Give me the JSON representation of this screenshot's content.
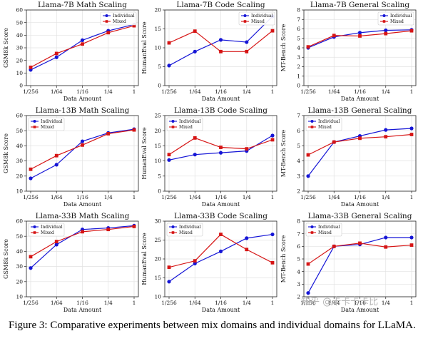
{
  "colors": {
    "individual": "#1515d6",
    "mixed": "#d61515"
  },
  "caption": "Figure 3: Comparative experiments between mix domains and individual domains for LLaMA.",
  "watermark": "知乎 @卡卡卡卡比",
  "chart_data": [
    {
      "type": "line",
      "title": "Llama-7B Math Scaling",
      "xlabel": "Data Amount",
      "ylabel": "GSM8k Score",
      "categories": [
        "1/256",
        "1/64",
        "1/16",
        "1/4",
        "1"
      ],
      "ylim": [
        0,
        60
      ],
      "yticks": [
        0,
        10,
        20,
        30,
        40,
        50,
        60
      ],
      "legend": "top-right",
      "series": [
        {
          "name": "Individual",
          "values": [
            12.5,
            22.5,
            36.0,
            43.5,
            48.5
          ]
        },
        {
          "name": "Mixed",
          "values": [
            14.5,
            25.5,
            33.0,
            42.0,
            47.5
          ]
        }
      ]
    },
    {
      "type": "line",
      "title": "Llama-7B Code Scaling",
      "xlabel": "Data Amount",
      "ylabel": "HumanEval Score",
      "categories": [
        "1/256",
        "1/64",
        "1/16",
        "1/4",
        "1"
      ],
      "ylim": [
        0,
        20
      ],
      "yticks": [
        0,
        5,
        10,
        15,
        20
      ],
      "legend": "top-right",
      "series": [
        {
          "name": "Individual",
          "values": [
            5.3,
            9.0,
            12.1,
            11.5,
            18.3
          ]
        },
        {
          "name": "Mixed",
          "values": [
            11.3,
            14.4,
            9.0,
            9.0,
            14.5
          ]
        }
      ]
    },
    {
      "type": "line",
      "title": "Llama-7B General Scaling",
      "xlabel": "Data Amount",
      "ylabel": "MT-Bench Score",
      "categories": [
        "1/256",
        "1/64",
        "1/16",
        "1/4",
        "1"
      ],
      "ylim": [
        0,
        8
      ],
      "yticks": [
        0,
        1,
        2,
        3,
        4,
        5,
        6,
        7,
        8
      ],
      "legend": "top-right",
      "series": [
        {
          "name": "Individual",
          "values": [
            4.0,
            5.15,
            5.6,
            5.85,
            5.9
          ]
        },
        {
          "name": "Mixed",
          "values": [
            4.1,
            5.3,
            5.25,
            5.5,
            5.8
          ]
        }
      ]
    },
    {
      "type": "line",
      "title": "Llama-13B Math Scaling",
      "xlabel": "Data Amount",
      "ylabel": "GSM8k Score",
      "categories": [
        "1/256",
        "1/64",
        "1/16",
        "1/4",
        "1"
      ],
      "ylim": [
        10,
        60
      ],
      "yticks": [
        10,
        20,
        30,
        40,
        50,
        60
      ],
      "legend": "top-left",
      "series": [
        {
          "name": "Individual",
          "values": [
            18.5,
            27.5,
            43.0,
            48.5,
            51.0
          ]
        },
        {
          "name": "Mixed",
          "values": [
            24.5,
            33.5,
            40.5,
            48.0,
            50.5
          ]
        }
      ]
    },
    {
      "type": "line",
      "title": "Llama-13B Code Scaling",
      "xlabel": "Data Amount",
      "ylabel": "HumanEval Score",
      "categories": [
        "1/256",
        "1/64",
        "1/16",
        "1/4",
        "1"
      ],
      "ylim": [
        0,
        25
      ],
      "yticks": [
        0,
        5,
        10,
        15,
        20,
        25
      ],
      "legend": "top-left",
      "series": [
        {
          "name": "Individual",
          "values": [
            10.3,
            12.1,
            12.7,
            13.3,
            18.4
          ]
        },
        {
          "name": "Mixed",
          "values": [
            12.1,
            17.6,
            14.5,
            14.0,
            17.0
          ]
        }
      ]
    },
    {
      "type": "line",
      "title": "Llama-13B General Scaling",
      "xlabel": "Data Amount",
      "ylabel": "MT-Bench Score",
      "categories": [
        "1/256",
        "1/64",
        "1/16",
        "1/4",
        "1"
      ],
      "ylim": [
        2,
        7
      ],
      "yticks": [
        2,
        3,
        4,
        5,
        6,
        7
      ],
      "legend": "top-left",
      "series": [
        {
          "name": "Individual",
          "values": [
            3.0,
            5.25,
            5.65,
            6.05,
            6.15
          ]
        },
        {
          "name": "Mixed",
          "values": [
            4.4,
            5.25,
            5.5,
            5.6,
            5.75
          ]
        }
      ]
    },
    {
      "type": "line",
      "title": "Llama-33B Math Scaling",
      "xlabel": "Data Amount",
      "ylabel": "GSM8k Score",
      "categories": [
        "1/256",
        "1/64",
        "1/16",
        "1/4",
        "1"
      ],
      "ylim": [
        10,
        60
      ],
      "yticks": [
        10,
        20,
        30,
        40,
        50,
        60
      ],
      "legend": "top-left",
      "series": [
        {
          "name": "Individual",
          "values": [
            29.0,
            44.5,
            54.5,
            55.5,
            57.0
          ]
        },
        {
          "name": "Mixed",
          "values": [
            36.5,
            46.5,
            53.0,
            54.5,
            56.5
          ]
        }
      ]
    },
    {
      "type": "line",
      "title": "Llama-33B Code Scaling",
      "xlabel": "Data Amount",
      "ylabel": "HumanEval Score",
      "categories": [
        "1/256",
        "1/64",
        "1/16",
        "1/4",
        "1"
      ],
      "ylim": [
        10,
        30
      ],
      "yticks": [
        10,
        15,
        20,
        25,
        30
      ],
      "legend": "top-left",
      "series": [
        {
          "name": "Individual",
          "values": [
            14.0,
            18.8,
            22.0,
            25.5,
            26.5
          ]
        },
        {
          "name": "Mixed",
          "values": [
            17.8,
            19.5,
            26.5,
            22.5,
            19.0
          ]
        }
      ]
    },
    {
      "type": "line",
      "title": "Llama-33B General Scaling",
      "xlabel": "Data Amount",
      "ylabel": "MT-Bench Score",
      "categories": [
        "1/256",
        "1/64",
        "1/16",
        "1/4",
        "1"
      ],
      "ylim": [
        2,
        8
      ],
      "yticks": [
        2,
        3,
        4,
        5,
        6,
        7,
        8
      ],
      "legend": "top-left",
      "series": [
        {
          "name": "Individual",
          "values": [
            2.3,
            6.0,
            6.15,
            6.7,
            6.7
          ]
        },
        {
          "name": "Mixed",
          "values": [
            4.6,
            6.0,
            6.25,
            5.95,
            6.1
          ]
        }
      ]
    }
  ]
}
